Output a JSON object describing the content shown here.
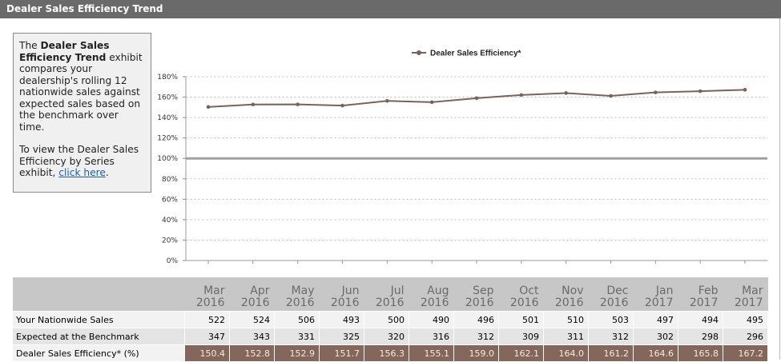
{
  "header": {
    "title": "Dealer Sales Efficiency Trend"
  },
  "info": {
    "p1_prefix": "The ",
    "p1_bold": "Dealer Sales Efficiency Trend",
    "p1_rest": " exhibit compares your dealership's rolling 12 nationwide sales against expected sales based on the benchmark over time.",
    "p2_prefix": "To view the Dealer Sales Efficiency by Series exhibit, ",
    "p2_link": "click here",
    "p2_suffix": "."
  },
  "chart_data": {
    "type": "line",
    "title": "",
    "xlabel": "",
    "ylabel": "",
    "ylim": [
      0,
      180
    ],
    "y_ticks": [
      "0%",
      "20%",
      "40%",
      "60%",
      "80%",
      "100%",
      "120%",
      "140%",
      "160%",
      "180%"
    ],
    "grid": true,
    "reference_line": 100,
    "legend_position": "top-center",
    "categories": [
      "Mar 2016",
      "Apr 2016",
      "May 2016",
      "Jun 2016",
      "Jul 2016",
      "Aug 2016",
      "Sep 2016",
      "Oct 2016",
      "Nov 2016",
      "Dec 2016",
      "Jan 2017",
      "Feb 2017",
      "Mar 2017"
    ],
    "series": [
      {
        "name": "Dealer Sales Efficiency*",
        "color": "#7a6258",
        "values": [
          150.4,
          152.8,
          152.9,
          151.7,
          156.3,
          155.1,
          159.0,
          162.1,
          164.0,
          161.2,
          164.6,
          165.8,
          167.2
        ]
      }
    ]
  },
  "table": {
    "columns": [
      [
        "Mar",
        "2016"
      ],
      [
        "Apr",
        "2016"
      ],
      [
        "May",
        "2016"
      ],
      [
        "Jun",
        "2016"
      ],
      [
        "Jul",
        "2016"
      ],
      [
        "Aug",
        "2016"
      ],
      [
        "Sep",
        "2016"
      ],
      [
        "Oct",
        "2016"
      ],
      [
        "Nov",
        "2016"
      ],
      [
        "Dec",
        "2016"
      ],
      [
        "Jan",
        "2017"
      ],
      [
        "Feb",
        "2017"
      ],
      [
        "Mar",
        "2017"
      ]
    ],
    "rows": [
      {
        "label": "Your Nationwide Sales",
        "values": [
          "522",
          "524",
          "506",
          "493",
          "500",
          "490",
          "496",
          "501",
          "510",
          "503",
          "497",
          "494",
          "495"
        ]
      },
      {
        "label": "Expected at the Benchmark",
        "values": [
          "347",
          "343",
          "331",
          "325",
          "320",
          "316",
          "312",
          "309",
          "311",
          "312",
          "302",
          "298",
          "296"
        ]
      },
      {
        "label": "Dealer Sales Efficiency* (%)",
        "values": [
          "150.4",
          "152.8",
          "152.9",
          "151.7",
          "156.3",
          "155.1",
          "159.0",
          "162.1",
          "164.0",
          "161.2",
          "164.6",
          "165.8",
          "167.2"
        ]
      }
    ]
  }
}
